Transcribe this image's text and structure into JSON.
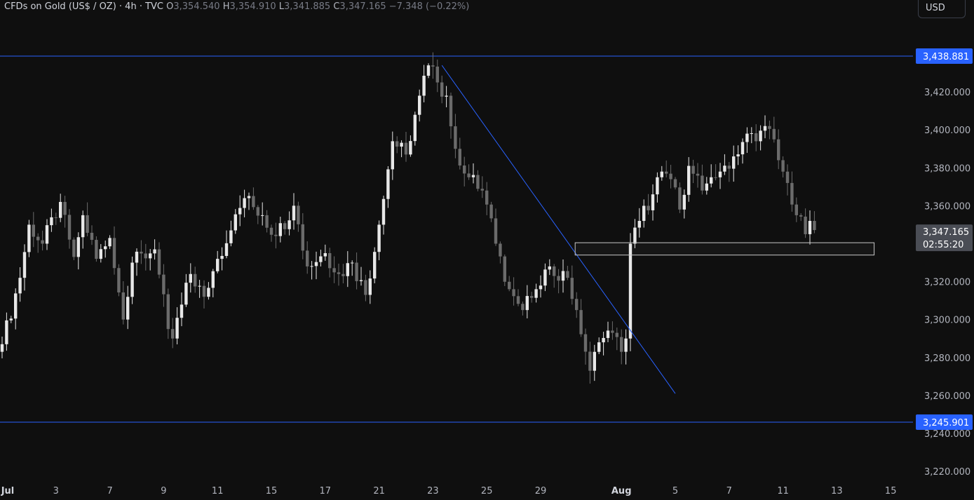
{
  "legend": {
    "symbol": "CFDs on Gold (US$ / OZ) · 4h · TVC",
    "open_label": "O",
    "open": "3,354.540",
    "high_label": "H",
    "high": "3,354.910",
    "low_label": "L",
    "low": "3,341.885",
    "close_label": "C",
    "close": "3,347.165",
    "change": "−7.348 (−0.22%)"
  },
  "currency": "USD",
  "colors": {
    "background": "#0f0f0f",
    "bull_candle": "#e8e8e8",
    "bear_candle": "#6b6b6b",
    "level_line": "#2962ff",
    "trendline": "#2962ff",
    "price_badge": "#2962ff",
    "current_badge": "#4a4d55",
    "axis_text": "#b2b5be"
  },
  "chart_data": {
    "type": "candlestick",
    "timeframe": "4h",
    "ylim": [
      3210,
      3460
    ],
    "y_ticks": [
      3220,
      3240,
      3260,
      3280,
      3300,
      3320,
      3340,
      3360,
      3380,
      3400,
      3420
    ],
    "y_tick_labels": [
      "3,220.000",
      "3,240.000",
      "3,260.000",
      "3,280.000",
      "3,300.000",
      "3,320.000",
      "3,340.000",
      "3,360.000",
      "3,380.000",
      "3,400.000",
      "3,420.000"
    ],
    "x_ticks": [
      {
        "label": "Jul",
        "bar": 0,
        "bold": true
      },
      {
        "label": "3",
        "bar": 12
      },
      {
        "label": "7",
        "bar": 24
      },
      {
        "label": "9",
        "bar": 36
      },
      {
        "label": "11",
        "bar": 48
      },
      {
        "label": "15",
        "bar": 60
      },
      {
        "label": "17",
        "bar": 72
      },
      {
        "label": "21",
        "bar": 84
      },
      {
        "label": "23",
        "bar": 96
      },
      {
        "label": "25",
        "bar": 108
      },
      {
        "label": "29",
        "bar": 120
      },
      {
        "label": "Aug",
        "bar": 138,
        "bold": true
      },
      {
        "label": "5",
        "bar": 150
      },
      {
        "label": "7",
        "bar": 162
      },
      {
        "label": "11",
        "bar": 174
      },
      {
        "label": "13",
        "bar": 186
      },
      {
        "label": "15",
        "bar": 198
      }
    ],
    "horizontal_levels": [
      {
        "price": 3438.881,
        "label": "3,438.881"
      },
      {
        "price": 3245.901,
        "label": "3,245.901"
      }
    ],
    "trendline": {
      "from": {
        "bar": 98,
        "price": 3434
      },
      "to": {
        "bar": 150,
        "price": 3261
      }
    },
    "support_zone": {
      "bar_from": 128,
      "bar_to": 194,
      "price_high": 3340.5,
      "price_low": 3334
    },
    "current_price": {
      "price": 3347.165,
      "label": "3,347.165",
      "countdown": "02:55:20"
    },
    "keypoints": [
      [
        0,
        3287
      ],
      [
        4,
        3322
      ],
      [
        6,
        3350
      ],
      [
        9,
        3340
      ],
      [
        13,
        3362
      ],
      [
        16,
        3333
      ],
      [
        18,
        3355
      ],
      [
        21,
        3332
      ],
      [
        24,
        3343
      ],
      [
        27,
        3300
      ],
      [
        29,
        3330
      ],
      [
        34,
        3337
      ],
      [
        37,
        3295
      ],
      [
        38,
        3290
      ],
      [
        42,
        3324
      ],
      [
        45,
        3312
      ],
      [
        48,
        3332
      ],
      [
        51,
        3347
      ],
      [
        54,
        3364
      ],
      [
        58,
        3355
      ],
      [
        61,
        3344
      ],
      [
        65,
        3360
      ],
      [
        68,
        3328
      ],
      [
        72,
        3335
      ],
      [
        75,
        3324
      ],
      [
        78,
        3330
      ],
      [
        81,
        3313
      ],
      [
        84,
        3350
      ],
      [
        87,
        3394
      ],
      [
        90,
        3387
      ],
      [
        93,
        3418
      ],
      [
        95,
        3434
      ],
      [
        97,
        3425
      ],
      [
        99,
        3418
      ],
      [
        101,
        3390
      ],
      [
        104,
        3375
      ],
      [
        107,
        3368
      ],
      [
        110,
        3340
      ],
      [
        113,
        3316
      ],
      [
        116,
        3305
      ],
      [
        119,
        3316
      ],
      [
        122,
        3328
      ],
      [
        126,
        3322
      ],
      [
        128,
        3305
      ],
      [
        131,
        3273
      ],
      [
        133,
        3288
      ],
      [
        136,
        3293
      ],
      [
        138,
        3283
      ],
      [
        139,
        3290
      ],
      [
        140,
        3340
      ],
      [
        142,
        3352
      ],
      [
        145,
        3366
      ],
      [
        147,
        3378
      ],
      [
        149,
        3374
      ],
      [
        151,
        3358
      ],
      [
        153,
        3381
      ],
      [
        156,
        3368
      ],
      [
        158,
        3375
      ],
      [
        160,
        3378
      ],
      [
        163,
        3386
      ],
      [
        166,
        3398
      ],
      [
        168,
        3394
      ],
      [
        170,
        3402
      ],
      [
        172,
        3395
      ],
      [
        173,
        3384
      ],
      [
        175,
        3372
      ],
      [
        177,
        3355
      ],
      [
        179,
        3345
      ],
      [
        180,
        3352
      ],
      [
        181,
        3347.165
      ]
    ]
  }
}
